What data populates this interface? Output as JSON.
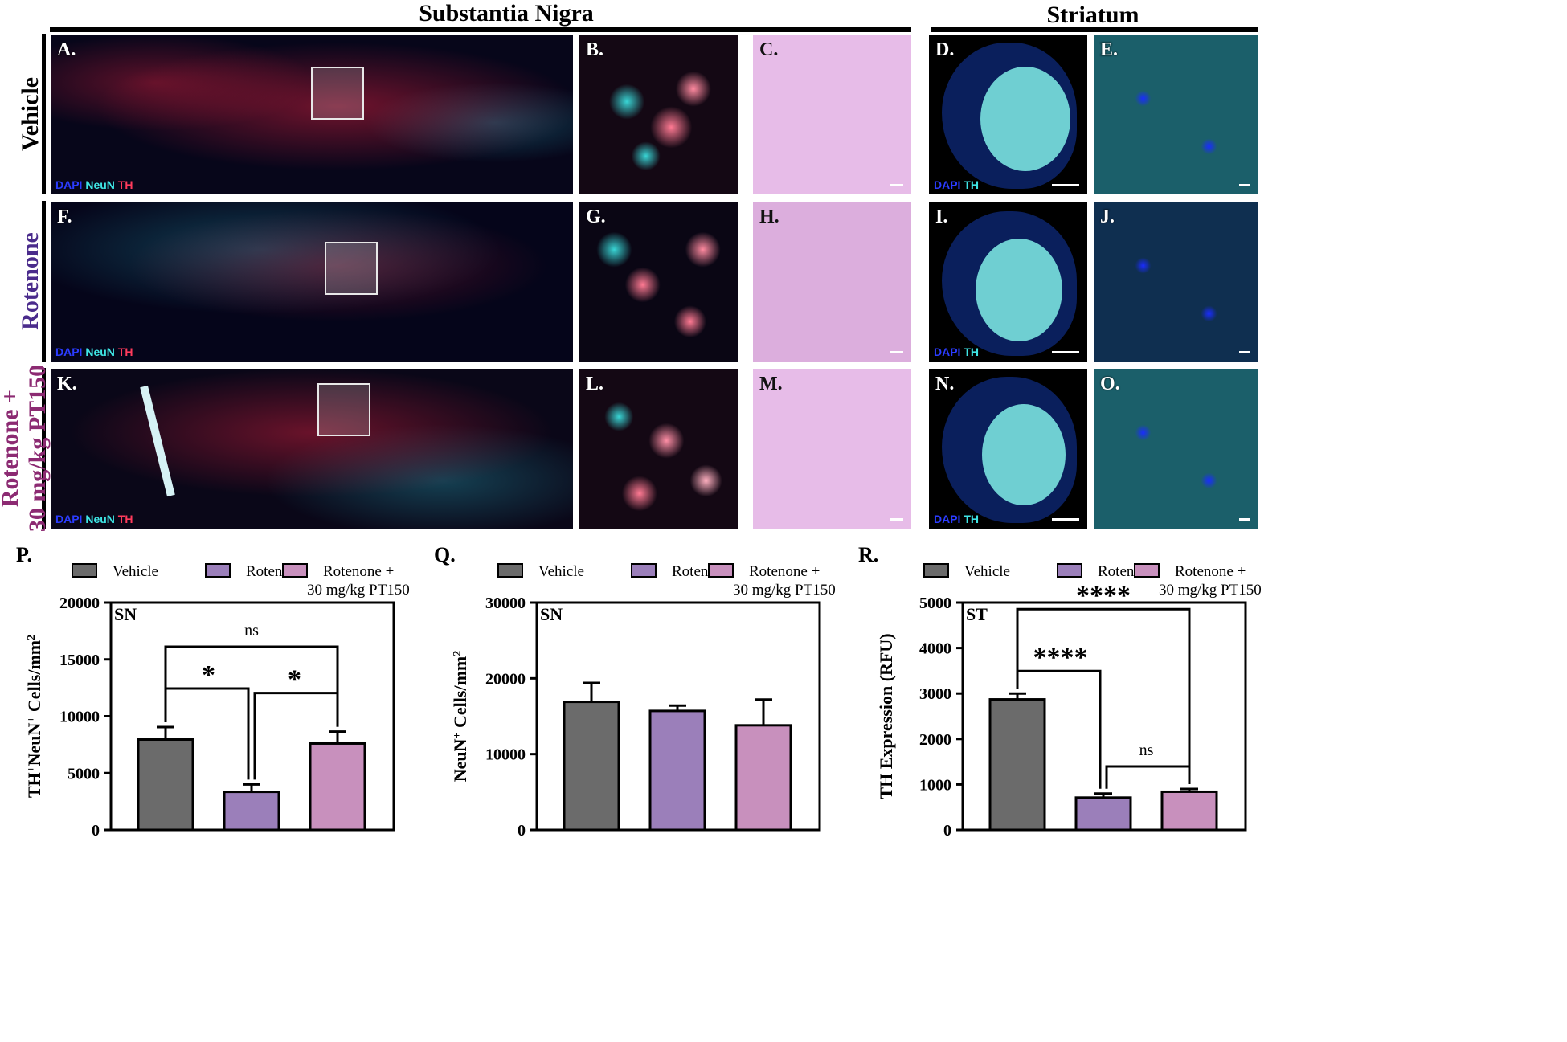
{
  "sections": {
    "substantia_nigra": "Substantia Nigra",
    "striatum": "Striatum"
  },
  "rows": [
    {
      "label": "Vehicle",
      "color": "#000000"
    },
    {
      "label": "Rotenone",
      "color": "#4a2b8c"
    },
    {
      "label_line1": "Rotenone +",
      "label_line2": "30 mg/kg PT150",
      "color": "#8c2a72"
    }
  ],
  "panels": {
    "A": "A.",
    "B": "B.",
    "C": "C.",
    "D": "D.",
    "E": "E.",
    "F": "F.",
    "G": "G.",
    "H": "H.",
    "I": "I.",
    "J": "J.",
    "K": "K.",
    "L": "L.",
    "M": "M.",
    "N": "N.",
    "O": "O."
  },
  "stains": {
    "dapi": "DAPI",
    "neun": "NeuN",
    "th": "TH"
  },
  "colors": {
    "vehicle": "#6b6b6b",
    "rotenone": "#9b7fba",
    "pt150": "#c890bd",
    "dapi": "#2b3cff",
    "neun": "#3fe6e6",
    "th": "#ff3b5c",
    "he_pink": "#e4b7e4"
  },
  "chart_data": [
    {
      "panel": "P.",
      "type": "bar",
      "region": "SN",
      "categories": [
        "Vehicle",
        "Rotenone",
        "Rotenone + 30 mg/kg PT150"
      ],
      "legend": [
        "Vehicle",
        "Rotenone",
        "Rotenone +",
        "30 mg/kg PT150"
      ],
      "values": [
        7950,
        3350,
        7600
      ],
      "errors": [
        1100,
        650,
        1050
      ],
      "ylabel": "TH+NeuN+ Cells/mm2",
      "ylabel_parts": [
        "TH",
        "+",
        "NeuN",
        "+",
        " Cells/mm",
        "2"
      ],
      "ylim": [
        0,
        20000
      ],
      "yticks": [
        "0",
        "5000",
        "10000",
        "15000",
        "20000"
      ],
      "significance": [
        {
          "pair": [
            0,
            1
          ],
          "label": "*"
        },
        {
          "pair": [
            1,
            2
          ],
          "label": "*"
        },
        {
          "pair": [
            0,
            2
          ],
          "label": "ns"
        }
      ]
    },
    {
      "panel": "Q.",
      "type": "bar",
      "region": "SN",
      "categories": [
        "Vehicle",
        "Rotenone",
        "Rotenone + 30 mg/kg PT150"
      ],
      "legend": [
        "Vehicle",
        "Rotenone",
        "Rotenone +",
        "30 mg/kg PT150"
      ],
      "values": [
        16900,
        15700,
        13800
      ],
      "errors": [
        2500,
        700,
        3400
      ],
      "ylabel": "NeuN+ Cells/mm2",
      "ylabel_parts": [
        "NeuN",
        "+",
        " Cells/mm",
        "2"
      ],
      "ylim": [
        0,
        30000
      ],
      "yticks": [
        "0",
        "10000",
        "20000",
        "30000"
      ],
      "significance": []
    },
    {
      "panel": "R.",
      "type": "bar",
      "region": "ST",
      "categories": [
        "Vehicle",
        "Rotenone",
        "Rotenone + 30 mg/kg PT150"
      ],
      "legend": [
        "Vehicle",
        "Rotenone",
        "Rotenone +",
        "30 mg/kg PT150"
      ],
      "values": [
        2870,
        710,
        840
      ],
      "errors": [
        130,
        90,
        60
      ],
      "ylabel": "TH Expression (RFU)",
      "ylabel_parts": [
        "TH Expression (RFU)"
      ],
      "ylim": [
        0,
        5000
      ],
      "yticks": [
        "0",
        "1000",
        "2000",
        "3000",
        "4000",
        "5000"
      ],
      "significance": [
        {
          "pair": [
            0,
            1
          ],
          "label": "****"
        },
        {
          "pair": [
            1,
            2
          ],
          "label": "ns"
        },
        {
          "pair": [
            0,
            2
          ],
          "label": "****"
        }
      ]
    }
  ]
}
